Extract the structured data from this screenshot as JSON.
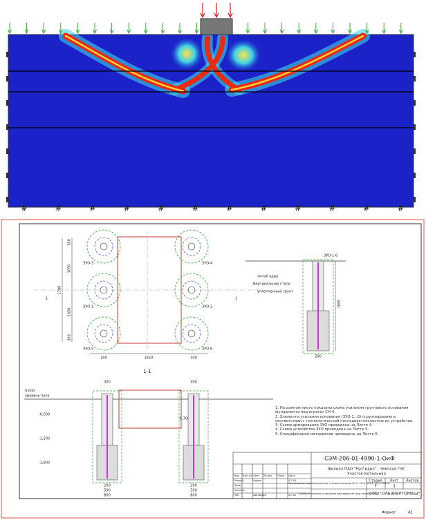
{
  "plan": {
    "dims_left": [
      "300",
      "1050",
      "1050",
      "300"
    ],
    "dim_total": "2700",
    "dims_bottom": [
      "300",
      "1550",
      "300"
    ],
    "labels": [
      "ЗУО-3",
      "ЗУО-4",
      "ЗУО-1",
      "ЗУО-2",
      "ЗУО-5",
      "ЗУО-6"
    ],
    "section_mark": "1"
  },
  "detail": {
    "title": "ЗУО-1-6",
    "callouts": [
      "литой ядро",
      "Вертикальная сталь",
      "уплотненный грунт"
    ],
    "height": "1600",
    "width": "200"
  },
  "section": {
    "title": "1-1",
    "floor_value": "0,000",
    "floor_label": "уровень пола",
    "levels": [
      "-0,600",
      "-1,200",
      "-1,800"
    ],
    "foundation_level": "-0,700",
    "pile_dims": [
      "300",
      "200",
      "500",
      "800"
    ]
  },
  "notes": [
    "1. На данном листе показана схема усиления грунтового основания фундамента под агрегат СН-4.",
    "2. Элементы усиления основания (ЗУО-1...6) сгруппированы в соответствии с технологической последовательностью их устройства.",
    "3. Схема армирования ЗУО приведена на Листе 4.",
    "4. Схема устройства ЗУО приведена на Листе 5.",
    "5. Спецификация материалов приведена на Листе 6."
  ],
  "title_block": {
    "code": "СЭМ-206-01-4990-1-ОиФ",
    "organization": "Филиал ПАО \"РусГидро\" - Зейская ГЭС",
    "site": "Участок Котельная",
    "project": "Техническое перевооружение сетевых насосов СН-1, СН-2, СН-3, СН-4 (СН-5)",
    "header": [
      "Изм.",
      "Кол.уч",
      "Лист",
      "№ док.",
      "Подп.",
      "Дата"
    ],
    "roles": [
      "Разраб.",
      "Пров.",
      "Н.контр.",
      "ГИП"
    ],
    "names": [
      "Корин",
      "Шалимов"
    ],
    "date": "03.18",
    "stage_headers": [
      "Стадия",
      "Лист",
      "Листов"
    ],
    "stage": "Р",
    "sheet": "3",
    "sheet_title": "Схема усиления основания фундамента под агрегат СН-4",
    "company": "ООО \"СИБЭНЕРГОМАШ\"",
    "format_label": "Формат",
    "format": "А3"
  }
}
